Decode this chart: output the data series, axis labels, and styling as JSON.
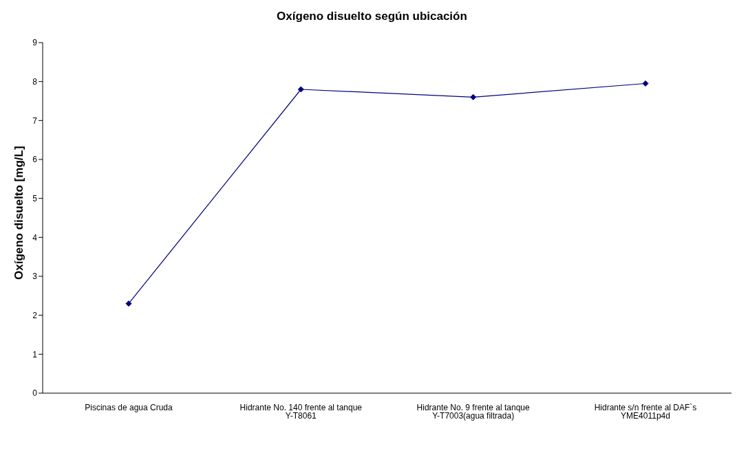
{
  "chart_data": {
    "type": "line",
    "title": "Oxígeno disuelto según ubicación",
    "ylabel": "Oxígeno disuelto [mg/L]",
    "categories": [
      "Piscinas de agua Cruda",
      "Hidrante No. 140 frente al tanque Y-T8061",
      "Hidrante No. 9 frente al tanque Y-T7003(agua filtrada)",
      "Hidrante s/n frente al DAF`s YME4011p4d"
    ],
    "series": [
      {
        "color": "#000080",
        "values": [
          2.3,
          7.8,
          7.6,
          7.95
        ]
      }
    ],
    "ylim": [
      0,
      9
    ],
    "yticks": [
      0,
      1,
      2,
      3,
      4,
      5,
      6,
      7,
      8,
      9
    ],
    "grid": false,
    "marker": "diamond",
    "line_style": "solid"
  }
}
